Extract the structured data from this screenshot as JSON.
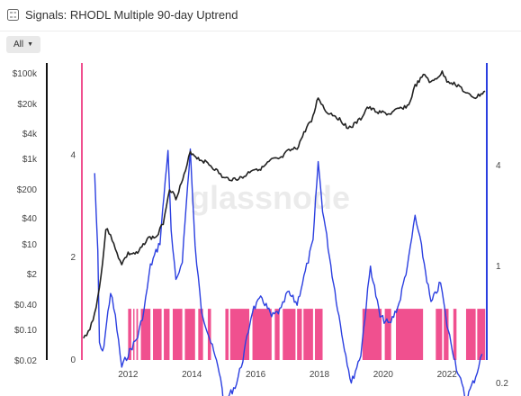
{
  "header": {
    "title": "Signals: RHODL Multiple 90-day Uptrend",
    "icon": "signals-icon"
  },
  "filter": {
    "label": "All"
  },
  "chart_data": {
    "type": "line",
    "title": "Signals: RHODL Multiple 90-day Uptrend",
    "watermark": "glassnode",
    "x_axis": {
      "ticks": [
        "2012",
        "2014",
        "2016",
        "2018",
        "2020",
        "2022"
      ],
      "range": [
        2010.55,
        2023.25
      ]
    },
    "y_axis_price": {
      "scale": "log",
      "ticks": [
        "$100k",
        "$20k",
        "$4k",
        "$1k",
        "$200",
        "$40",
        "$10",
        "$2",
        "$0.40",
        "$0.10",
        "$0.02"
      ],
      "range": [
        0.02,
        100000
      ]
    },
    "y_axis_signal": {
      "ticks": [
        "4",
        "2",
        "0"
      ],
      "range": [
        0,
        5.8
      ]
    },
    "y_axis_rhodl": {
      "scale": "log",
      "ticks": [
        "4",
        "1",
        "0.2"
      ]
    },
    "colors": {
      "price": "#222222",
      "rhodl": "#2b3fe0",
      "signal": "#f0508f",
      "left_axis": "#f0508f",
      "right_axis": "#2b3fe0"
    },
    "series": [
      {
        "type": "line",
        "x": [
          2010.6,
          2010.8,
          2011.0,
          2011.2,
          2011.3,
          2011.45,
          2011.6,
          2011.8,
          2012.0,
          2012.3,
          2012.6,
          2012.9,
          2013.1,
          2013.3,
          2013.5,
          2013.8,
          2013.95,
          2014.2,
          2014.5,
          2014.8,
          2015.0,
          2015.3,
          2015.6,
          2015.9,
          2016.2,
          2016.5,
          2016.8,
          2017.0,
          2017.3,
          2017.6,
          2017.8,
          2017.96,
          2018.2,
          2018.5,
          2018.9,
          2019.0,
          2019.3,
          2019.5,
          2019.8,
          2020.2,
          2020.5,
          2020.8,
          2021.0,
          2021.3,
          2021.5,
          2021.85,
          2022.0,
          2022.4,
          2022.6,
          2022.9,
          2023.2
        ],
        "values": [
          0.06,
          0.1,
          0.3,
          3,
          18,
          14,
          6,
          3,
          5,
          5,
          11,
          12,
          25,
          150,
          90,
          350,
          1000,
          700,
          550,
          360,
          250,
          240,
          260,
          400,
          420,
          650,
          700,
          1000,
          1200,
          3500,
          6000,
          17000,
          8000,
          6500,
          3500,
          3600,
          5500,
          10000,
          8000,
          7000,
          9200,
          11000,
          30000,
          55000,
          35000,
          60000,
          40000,
          30000,
          20000,
          16500,
          23000
        ]
      },
      {
        "type": "line",
        "x": [
          2010.95,
          2011.05,
          2011.1,
          2011.2,
          2011.45,
          2011.6,
          2011.8,
          2012.0,
          2012.3,
          2012.5,
          2012.7,
          2013.0,
          2013.25,
          2013.35,
          2013.5,
          2013.7,
          2013.95,
          2014.1,
          2014.3,
          2014.6,
          2014.9,
          2015.0,
          2015.4,
          2015.6,
          2015.9,
          2016.2,
          2016.5,
          2016.8,
          2017.0,
          2017.3,
          2017.6,
          2017.8,
          2017.96,
          2018.1,
          2018.4,
          2018.7,
          2019.0,
          2019.3,
          2019.6,
          2019.9,
          2020.2,
          2020.5,
          2020.8,
          2021.0,
          2021.2,
          2021.5,
          2021.8,
          2022.0,
          2022.3,
          2022.6,
          2022.9,
          2023.1
        ],
        "values": [
          3.6,
          1.2,
          0.35,
          0.3,
          0.7,
          0.5,
          0.25,
          0.3,
          0.38,
          0.55,
          1.0,
          1.4,
          5.0,
          1.6,
          0.8,
          1.1,
          5.0,
          1.3,
          0.55,
          0.35,
          0.22,
          0.15,
          0.2,
          0.28,
          0.55,
          0.65,
          0.5,
          0.55,
          0.7,
          0.6,
          1.0,
          1.4,
          4.2,
          2.2,
          0.9,
          0.4,
          0.2,
          0.3,
          1.0,
          0.5,
          0.45,
          0.6,
          1.1,
          2.0,
          1.3,
          0.6,
          0.8,
          0.45,
          0.25,
          0.16,
          0.22,
          0.3
        ]
      },
      {
        "type": "area",
        "segments": [
          [
            2012.0,
            2012.1
          ],
          [
            2012.16,
            2012.2
          ],
          [
            2012.26,
            2012.31
          ],
          [
            2012.4,
            2012.7
          ],
          [
            2012.78,
            2013.05
          ],
          [
            2013.12,
            2013.3
          ],
          [
            2013.4,
            2013.7
          ],
          [
            2013.78,
            2014.1
          ],
          [
            2014.2,
            2014.35
          ],
          [
            2014.5,
            2014.6
          ],
          [
            2015.05,
            2015.15
          ],
          [
            2015.2,
            2015.8
          ],
          [
            2015.9,
            2016.5
          ],
          [
            2016.6,
            2016.75
          ],
          [
            2016.85,
            2017.25
          ],
          [
            2017.3,
            2017.45
          ],
          [
            2017.5,
            2017.8
          ],
          [
            2017.86,
            2018.1
          ],
          [
            2019.35,
            2019.95
          ],
          [
            2020.05,
            2020.25
          ],
          [
            2020.4,
            2021.25
          ],
          [
            2021.65,
            2021.85
          ],
          [
            2021.9,
            2022.05
          ],
          [
            2022.2,
            2022.3
          ],
          [
            2022.6,
            2022.9
          ],
          [
            2022.95,
            2023.2
          ]
        ],
        "level": 1
      }
    ],
    "grid": false,
    "legend": "none"
  }
}
